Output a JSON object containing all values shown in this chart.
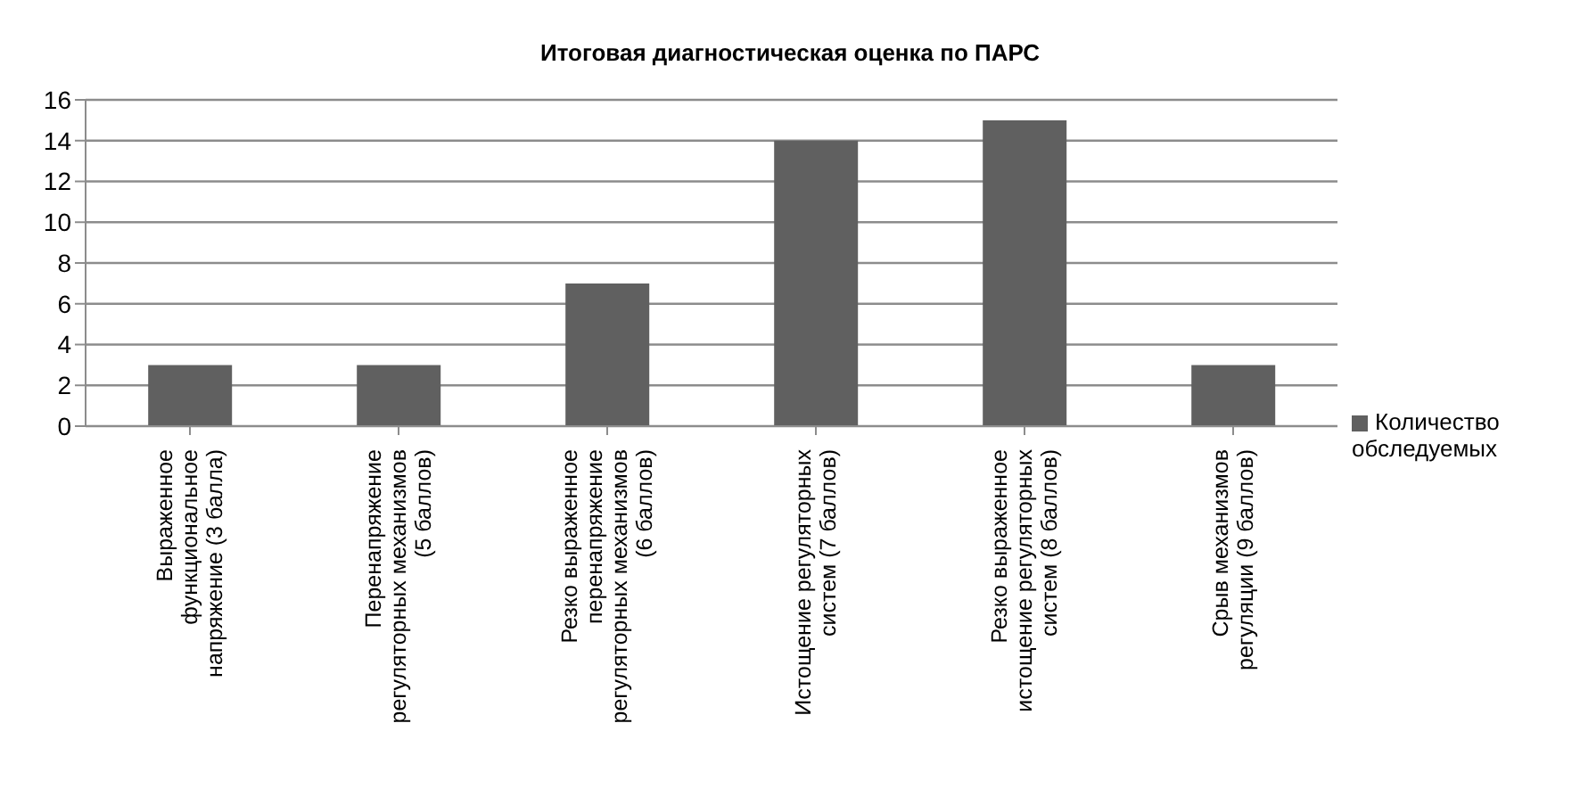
{
  "chart_data": {
    "type": "bar",
    "title": "Итоговая диагностическая оценка по ПАРС",
    "categories": [
      "Выраженное функциональное напряжение (3 балла)",
      "Перенапряжение регуляторных механизмов (5 баллов)",
      "Резко выраженное перенапряжение регуляторных механизмов (6 баллов)",
      "Истощение регуляторных систем (7 баллов)",
      "Резко выраженное истощение регуляторных систем (8 баллов)",
      "Срыв механизмов регуляции (9 баллов)"
    ],
    "series": [
      {
        "name": "Количество обследуемых",
        "color": "#606060",
        "values": [
          3,
          3,
          7,
          14,
          15,
          3
        ]
      }
    ],
    "ylim": [
      0,
      16
    ],
    "yticks": [
      0,
      2,
      4,
      6,
      8,
      10,
      12,
      14,
      16
    ],
    "grid": "y",
    "legend": "right"
  }
}
